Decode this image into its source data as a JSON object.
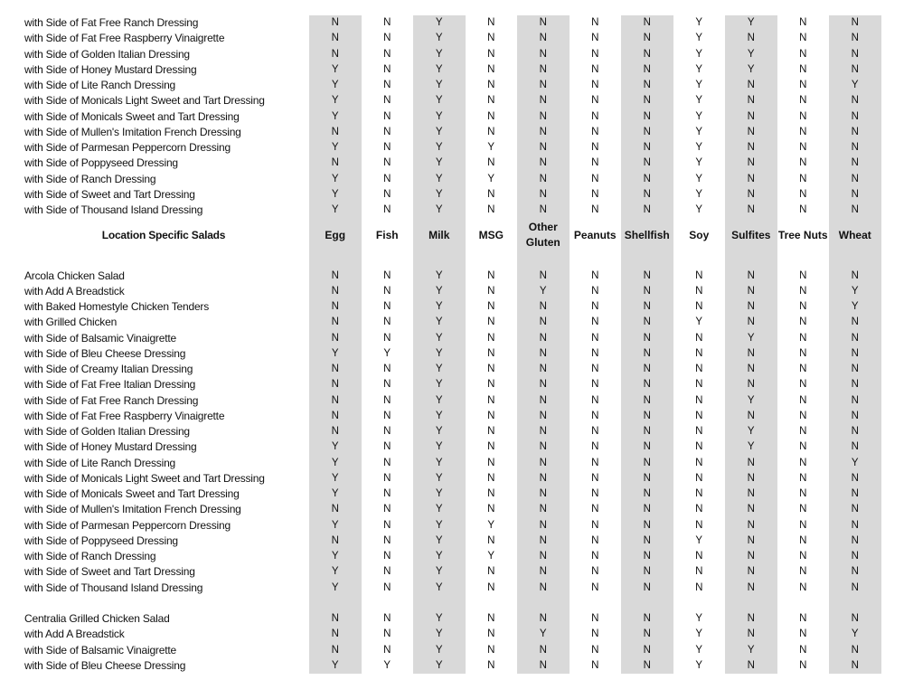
{
  "columns": [
    "Egg",
    "Fish",
    "Milk",
    "MSG",
    "Other Gluten",
    "Peanuts",
    "Shellfish",
    "Soy",
    "Sulfites",
    "Tree Nuts",
    "Wheat"
  ],
  "shaded_color": "#d9d9d9",
  "sections": [
    {
      "title": null,
      "rows": [
        {
          "name": "with Side of Fat Free Ranch Dressing",
          "values": [
            "N",
            "N",
            "Y",
            "N",
            "N",
            "N",
            "N",
            "Y",
            "Y",
            "N",
            "N"
          ]
        },
        {
          "name": "with Side of Fat Free Raspberry Vinaigrette",
          "values": [
            "N",
            "N",
            "Y",
            "N",
            "N",
            "N",
            "N",
            "Y",
            "N",
            "N",
            "N"
          ]
        },
        {
          "name": "with Side of Golden Italian Dressing",
          "values": [
            "N",
            "N",
            "Y",
            "N",
            "N",
            "N",
            "N",
            "Y",
            "Y",
            "N",
            "N"
          ]
        },
        {
          "name": "with Side of Honey Mustard Dressing",
          "values": [
            "Y",
            "N",
            "Y",
            "N",
            "N",
            "N",
            "N",
            "Y",
            "Y",
            "N",
            "N"
          ]
        },
        {
          "name": "with Side of Lite Ranch Dressing",
          "values": [
            "Y",
            "N",
            "Y",
            "N",
            "N",
            "N",
            "N",
            "Y",
            "N",
            "N",
            "Y"
          ]
        },
        {
          "name": "with Side of Monicals Light Sweet and Tart Dressing",
          "values": [
            "Y",
            "N",
            "Y",
            "N",
            "N",
            "N",
            "N",
            "Y",
            "N",
            "N",
            "N"
          ]
        },
        {
          "name": "with Side of Monicals Sweet and Tart Dressing",
          "values": [
            "Y",
            "N",
            "Y",
            "N",
            "N",
            "N",
            "N",
            "Y",
            "N",
            "N",
            "N"
          ]
        },
        {
          "name": "with Side of Mullen's Imitation French Dressing",
          "values": [
            "N",
            "N",
            "Y",
            "N",
            "N",
            "N",
            "N",
            "Y",
            "N",
            "N",
            "N"
          ]
        },
        {
          "name": "with Side of Parmesan Peppercorn Dressing",
          "values": [
            "Y",
            "N",
            "Y",
            "Y",
            "N",
            "N",
            "N",
            "Y",
            "N",
            "N",
            "N"
          ]
        },
        {
          "name": "with Side of Poppyseed Dressing",
          "values": [
            "N",
            "N",
            "Y",
            "N",
            "N",
            "N",
            "N",
            "Y",
            "N",
            "N",
            "N"
          ]
        },
        {
          "name": "with Side of Ranch Dressing",
          "values": [
            "Y",
            "N",
            "Y",
            "Y",
            "N",
            "N",
            "N",
            "Y",
            "N",
            "N",
            "N"
          ]
        },
        {
          "name": "with Side of Sweet and Tart Dressing",
          "values": [
            "Y",
            "N",
            "Y",
            "N",
            "N",
            "N",
            "N",
            "Y",
            "N",
            "N",
            "N"
          ]
        },
        {
          "name": "with Side of Thousand Island Dressing",
          "values": [
            "Y",
            "N",
            "Y",
            "N",
            "N",
            "N",
            "N",
            "Y",
            "N",
            "N",
            "N"
          ]
        }
      ]
    },
    {
      "title": "Location Specific Salads",
      "rows": []
    },
    {
      "title": null,
      "rows": [
        {
          "name": "Arcola Chicken Salad",
          "values": [
            "N",
            "N",
            "Y",
            "N",
            "N",
            "N",
            "N",
            "N",
            "N",
            "N",
            "N"
          ]
        },
        {
          "name": "with Add A Breadstick",
          "values": [
            "N",
            "N",
            "Y",
            "N",
            "Y",
            "N",
            "N",
            "N",
            "N",
            "N",
            "Y"
          ]
        },
        {
          "name": "with Baked Homestyle Chicken Tenders",
          "values": [
            "N",
            "N",
            "Y",
            "N",
            "N",
            "N",
            "N",
            "N",
            "N",
            "N",
            "Y"
          ]
        },
        {
          "name": "with Grilled Chicken",
          "values": [
            "N",
            "N",
            "Y",
            "N",
            "N",
            "N",
            "N",
            "Y",
            "N",
            "N",
            "N"
          ]
        },
        {
          "name": "with Side of Balsamic Vinaigrette",
          "values": [
            "N",
            "N",
            "Y",
            "N",
            "N",
            "N",
            "N",
            "N",
            "Y",
            "N",
            "N"
          ]
        },
        {
          "name": "with Side of Bleu Cheese Dressing",
          "values": [
            "Y",
            "Y",
            "Y",
            "N",
            "N",
            "N",
            "N",
            "N",
            "N",
            "N",
            "N"
          ]
        },
        {
          "name": "with Side of Creamy Italian Dressing",
          "values": [
            "N",
            "N",
            "Y",
            "N",
            "N",
            "N",
            "N",
            "N",
            "N",
            "N",
            "N"
          ]
        },
        {
          "name": "with Side of Fat Free Italian Dressing",
          "values": [
            "N",
            "N",
            "Y",
            "N",
            "N",
            "N",
            "N",
            "N",
            "N",
            "N",
            "N"
          ]
        },
        {
          "name": "with Side of Fat Free Ranch Dressing",
          "values": [
            "N",
            "N",
            "Y",
            "N",
            "N",
            "N",
            "N",
            "N",
            "Y",
            "N",
            "N"
          ]
        },
        {
          "name": "with Side of Fat Free Raspberry Vinaigrette",
          "values": [
            "N",
            "N",
            "Y",
            "N",
            "N",
            "N",
            "N",
            "N",
            "N",
            "N",
            "N"
          ]
        },
        {
          "name": "with Side of Golden Italian Dressing",
          "values": [
            "N",
            "N",
            "Y",
            "N",
            "N",
            "N",
            "N",
            "N",
            "Y",
            "N",
            "N"
          ]
        },
        {
          "name": "with Side of Honey Mustard Dressing",
          "values": [
            "Y",
            "N",
            "Y",
            "N",
            "N",
            "N",
            "N",
            "N",
            "Y",
            "N",
            "N"
          ]
        },
        {
          "name": "with Side of Lite Ranch Dressing",
          "values": [
            "Y",
            "N",
            "Y",
            "N",
            "N",
            "N",
            "N",
            "N",
            "N",
            "N",
            "Y"
          ]
        },
        {
          "name": "with Side of Monicals Light Sweet and Tart Dressing",
          "values": [
            "Y",
            "N",
            "Y",
            "N",
            "N",
            "N",
            "N",
            "N",
            "N",
            "N",
            "N"
          ]
        },
        {
          "name": "with Side of Monicals Sweet and Tart Dressing",
          "values": [
            "Y",
            "N",
            "Y",
            "N",
            "N",
            "N",
            "N",
            "N",
            "N",
            "N",
            "N"
          ]
        },
        {
          "name": "with Side of Mullen's Imitation French Dressing",
          "values": [
            "N",
            "N",
            "Y",
            "N",
            "N",
            "N",
            "N",
            "N",
            "N",
            "N",
            "N"
          ]
        },
        {
          "name": "with Side of Parmesan Peppercorn Dressing",
          "values": [
            "Y",
            "N",
            "Y",
            "Y",
            "N",
            "N",
            "N",
            "N",
            "N",
            "N",
            "N"
          ]
        },
        {
          "name": "with Side of Poppyseed Dressing",
          "values": [
            "N",
            "N",
            "Y",
            "N",
            "N",
            "N",
            "N",
            "Y",
            "N",
            "N",
            "N"
          ]
        },
        {
          "name": "with Side of Ranch Dressing",
          "values": [
            "Y",
            "N",
            "Y",
            "Y",
            "N",
            "N",
            "N",
            "N",
            "N",
            "N",
            "N"
          ]
        },
        {
          "name": "with Side of Sweet and Tart Dressing",
          "values": [
            "Y",
            "N",
            "Y",
            "N",
            "N",
            "N",
            "N",
            "N",
            "N",
            "N",
            "N"
          ]
        },
        {
          "name": "with Side of Thousand Island Dressing",
          "values": [
            "Y",
            "N",
            "Y",
            "N",
            "N",
            "N",
            "N",
            "N",
            "N",
            "N",
            "N"
          ]
        }
      ]
    },
    {
      "title": null,
      "rows": [
        {
          "name": "Centralia Grilled Chicken Salad",
          "values": [
            "N",
            "N",
            "Y",
            "N",
            "N",
            "N",
            "N",
            "Y",
            "N",
            "N",
            "N"
          ]
        },
        {
          "name": "with Add A Breadstick",
          "values": [
            "N",
            "N",
            "Y",
            "N",
            "Y",
            "N",
            "N",
            "Y",
            "N",
            "N",
            "Y"
          ]
        },
        {
          "name": "with Side of Balsamic Vinaigrette",
          "values": [
            "N",
            "N",
            "Y",
            "N",
            "N",
            "N",
            "N",
            "Y",
            "Y",
            "N",
            "N"
          ]
        },
        {
          "name": "with Side of Bleu Cheese Dressing",
          "values": [
            "Y",
            "Y",
            "Y",
            "N",
            "N",
            "N",
            "N",
            "Y",
            "N",
            "N",
            "N"
          ]
        }
      ]
    }
  ]
}
